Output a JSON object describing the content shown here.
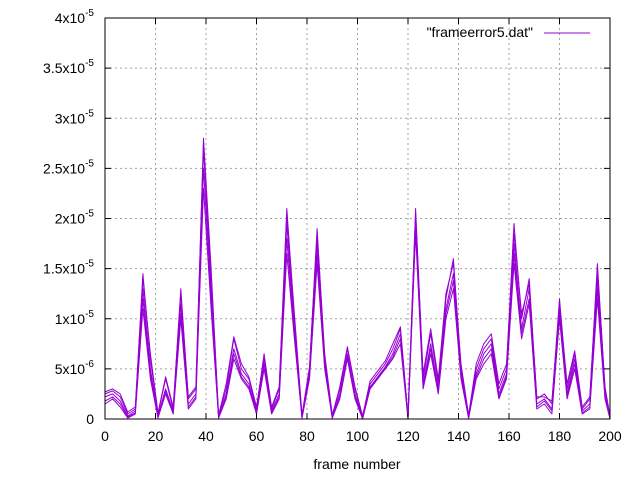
{
  "chart_data": {
    "type": "line",
    "title": "",
    "xlabel": "frame number",
    "ylabel": "",
    "xlim": [
      0,
      200
    ],
    "ylim": [
      0,
      4e-05
    ],
    "grid": true,
    "legend_position": "top-right",
    "colors": {
      "series": "#9400d3",
      "frame": "#000000",
      "grid": "#a0a0a0"
    },
    "x_ticks": [
      {
        "value": 0,
        "label": "0"
      },
      {
        "value": 20,
        "label": "20"
      },
      {
        "value": 40,
        "label": "40"
      },
      {
        "value": 60,
        "label": "60"
      },
      {
        "value": 80,
        "label": "80"
      },
      {
        "value": 100,
        "label": "100"
      },
      {
        "value": 120,
        "label": "120"
      },
      {
        "value": 140,
        "label": "140"
      },
      {
        "value": 160,
        "label": "160"
      },
      {
        "value": 180,
        "label": "180"
      },
      {
        "value": 200,
        "label": "200"
      }
    ],
    "y_ticks": [
      {
        "value": 0,
        "mantissa": "0",
        "exp": ""
      },
      {
        "value": 5e-06,
        "mantissa": "5x10",
        "exp": "-6"
      },
      {
        "value": 1e-05,
        "mantissa": "1x10",
        "exp": "-5"
      },
      {
        "value": 1.5e-05,
        "mantissa": "1.5x10",
        "exp": "-5"
      },
      {
        "value": 2e-05,
        "mantissa": "2x10",
        "exp": "-5"
      },
      {
        "value": 2.5e-05,
        "mantissa": "2.5x10",
        "exp": "-5"
      },
      {
        "value": 3e-05,
        "mantissa": "3x10",
        "exp": "-5"
      },
      {
        "value": 3.5e-05,
        "mantissa": "3.5x10",
        "exp": "-5"
      },
      {
        "value": 4e-05,
        "mantissa": "4x10",
        "exp": "-5"
      }
    ],
    "legend": [
      {
        "label": "\"frameerror5.dat\""
      }
    ],
    "series": [
      {
        "x": [
          0,
          3,
          6,
          9,
          12,
          15,
          18,
          21,
          24,
          27,
          30,
          33,
          36,
          39,
          42,
          45,
          48,
          51,
          54,
          57,
          60,
          63,
          66,
          69,
          72,
          75,
          78,
          81,
          84,
          87,
          90,
          93,
          96,
          99,
          102,
          105,
          108,
          111,
          114,
          117,
          120,
          123,
          126,
          129,
          132,
          135,
          138,
          141,
          144,
          147,
          150,
          153,
          156,
          159,
          162,
          165,
          168,
          171,
          174,
          177,
          180,
          183,
          186,
          189,
          192,
          195,
          198,
          200
        ],
        "values": [
          2.5e-06,
          2.8e-06,
          2.2e-06,
          5e-07,
          1e-06,
          1.45e-05,
          6e-06,
          5e-07,
          4e-06,
          1e-06,
          1.3e-05,
          2e-06,
          3e-06,
          2.8e-05,
          1.5e-05,
          3e-07,
          3e-06,
          8e-06,
          5e-06,
          4e-06,
          1e-06,
          6.5e-06,
          1e-06,
          3e-06,
          2.1e-05,
          1e-05,
          3e-07,
          5e-06,
          1.9e-05,
          6e-06,
          3e-07,
          3e-06,
          7e-06,
          3e-06,
          2e-07,
          3.5e-06,
          4.5e-06,
          5.5e-06,
          7e-06,
          9e-06,
          2e-07,
          2.1e-05,
          4e-06,
          8.5e-06,
          3.5e-06,
          1.2e-05,
          1.6e-05,
          5e-06,
          3e-07,
          5e-06,
          7e-06,
          8e-06,
          3e-06,
          5e-06,
          1.95e-05,
          1e-05,
          1.4e-05,
          2e-06,
          2.5e-06,
          1.5e-06,
          1.2e-05,
          3e-06,
          6.5e-06,
          1e-06,
          2e-06,
          1.55e-05,
          3e-06,
          2e-07
        ]
      },
      {
        "x": [
          0,
          3,
          6,
          9,
          12,
          15,
          18,
          21,
          24,
          27,
          30,
          33,
          36,
          39,
          42,
          45,
          48,
          51,
          54,
          57,
          60,
          63,
          66,
          69,
          72,
          75,
          78,
          81,
          84,
          87,
          90,
          93,
          96,
          99,
          102,
          105,
          108,
          111,
          114,
          117,
          120,
          123,
          126,
          129,
          132,
          135,
          138,
          141,
          144,
          147,
          150,
          153,
          156,
          159,
          162,
          165,
          168,
          171,
          174,
          177,
          180,
          183,
          186,
          189,
          192,
          195,
          198,
          200
        ],
        "values": [
          2.2e-06,
          2.5e-06,
          1.8e-06,
          3e-07,
          8e-07,
          1.3e-05,
          5e-06,
          3e-07,
          3e-06,
          8e-07,
          1.15e-05,
          1.5e-06,
          2.5e-06,
          2.7e-05,
          1.3e-05,
          2e-07,
          2.5e-06,
          7e-06,
          4.5e-06,
          3.5e-06,
          8e-07,
          6e-06,
          8e-07,
          2.5e-06,
          1.95e-05,
          9e-06,
          2e-07,
          4.5e-06,
          1.75e-05,
          5.5e-06,
          2e-07,
          2.5e-06,
          6.5e-06,
          2.5e-06,
          1e-07,
          3.2e-06,
          4.2e-06,
          5.2e-06,
          6.5e-06,
          8.5e-06,
          1e-07,
          2e-05,
          3.5e-06,
          7.5e-06,
          3e-06,
          1.1e-05,
          1.45e-05,
          4.5e-06,
          2e-07,
          4.5e-06,
          6.5e-06,
          7.5e-06,
          2.5e-06,
          4.5e-06,
          1.75e-05,
          9e-06,
          1.3e-05,
          1.5e-06,
          2e-06,
          1e-06,
          1.1e-05,
          2.5e-06,
          6e-06,
          8e-07,
          1.5e-06,
          1.4e-05,
          2.5e-06,
          1e-07
        ]
      },
      {
        "x": [
          0,
          3,
          6,
          9,
          12,
          15,
          18,
          21,
          24,
          27,
          30,
          33,
          36,
          39,
          42,
          45,
          48,
          51,
          54,
          57,
          60,
          63,
          66,
          69,
          72,
          75,
          78,
          81,
          84,
          87,
          90,
          93,
          96,
          99,
          102,
          105,
          108,
          111,
          114,
          117,
          120,
          123,
          126,
          129,
          132,
          135,
          138,
          141,
          144,
          147,
          150,
          153,
          156,
          159,
          162,
          165,
          168,
          171,
          174,
          177,
          180,
          183,
          186,
          189,
          192,
          195,
          198,
          200
        ],
        "values": [
          1.5e-06,
          2e-06,
          1.2e-06,
          1e-07,
          5e-07,
          1.1e-05,
          4e-06,
          1e-07,
          2.5e-06,
          5e-07,
          1e-05,
          1e-06,
          2e-06,
          2.3e-05,
          1.1e-05,
          1e-07,
          2e-06,
          6e-06,
          4e-06,
          3e-06,
          5e-07,
          5e-06,
          5e-07,
          2e-06,
          1.65e-05,
          8e-06,
          1e-07,
          4e-06,
          1.55e-05,
          5e-06,
          1e-07,
          2e-06,
          6e-06,
          2e-06,
          0,
          3e-06,
          4e-06,
          5e-06,
          6e-06,
          7.5e-06,
          0,
          1.85e-05,
          3e-06,
          6.5e-06,
          2.5e-06,
          1e-05,
          1.3e-05,
          4e-06,
          1e-07,
          4e-06,
          5.5e-06,
          6.5e-06,
          2e-06,
          4e-06,
          1.55e-05,
          8e-06,
          1.15e-05,
          1e-06,
          1.5e-06,
          5e-07,
          1e-05,
          2e-06,
          5e-06,
          5e-07,
          1e-06,
          1.2e-05,
          2e-06,
          0
        ]
      },
      {
        "x": [
          0,
          3,
          6,
          9,
          12,
          15,
          18,
          21,
          24,
          27,
          30,
          33,
          36,
          39,
          42,
          45,
          48,
          51,
          54,
          57,
          60,
          63,
          66,
          69,
          72,
          75,
          78,
          81,
          84,
          87,
          90,
          93,
          96,
          99,
          102,
          105,
          108,
          111,
          114,
          117,
          120,
          123,
          126,
          129,
          132,
          135,
          138,
          141,
          144,
          147,
          150,
          153,
          156,
          159,
          162,
          165,
          168,
          171,
          174,
          177,
          180,
          183,
          186,
          189,
          192,
          195,
          198,
          200
        ],
        "values": [
          2.7e-06,
          3e-06,
          2.5e-06,
          7e-07,
          1.2e-06,
          1.4e-05,
          6.5e-06,
          6e-07,
          4.2e-06,
          1.2e-06,
          1.25e-05,
          2.2e-06,
          3.2e-06,
          2.75e-05,
          1.45e-05,
          4e-07,
          3.5e-06,
          8.2e-06,
          5.5e-06,
          4.2e-06,
          1.2e-06,
          6.2e-06,
          1.2e-06,
          3.2e-06,
          2.05e-05,
          1.05e-05,
          4e-07,
          5.2e-06,
          1.85e-05,
          6.5e-06,
          4e-07,
          3.2e-06,
          7.2e-06,
          3.2e-06,
          3e-07,
          3.8e-06,
          4.8e-06,
          5.8e-06,
          7.5e-06,
          9.2e-06,
          3e-07,
          2.05e-05,
          4.5e-06,
          9e-06,
          4e-06,
          1.25e-05,
          1.55e-05,
          5.5e-06,
          4e-07,
          5.5e-06,
          7.5e-06,
          8.5e-06,
          3.5e-06,
          5.5e-06,
          1.85e-05,
          1.05e-05,
          1.35e-05,
          2.2e-06,
          2.2e-06,
          1.8e-06,
          1.15e-05,
          3.5e-06,
          6.8e-06,
          1.2e-06,
          2.2e-06,
          1.5e-05,
          3.2e-06,
          3e-07
        ]
      },
      {
        "x": [
          0,
          3,
          6,
          9,
          12,
          15,
          18,
          21,
          24,
          27,
          30,
          33,
          36,
          39,
          42,
          45,
          48,
          51,
          54,
          57,
          60,
          63,
          66,
          69,
          72,
          75,
          78,
          81,
          84,
          87,
          90,
          93,
          96,
          99,
          102,
          105,
          108,
          111,
          114,
          117,
          120,
          123,
          126,
          129,
          132,
          135,
          138,
          141,
          144,
          147,
          150,
          153,
          156,
          159,
          162,
          165,
          168,
          171,
          174,
          177,
          180,
          183,
          186,
          189,
          192,
          195,
          198,
          200
        ],
        "values": [
          1.8e-06,
          2.2e-06,
          1.5e-06,
          2e-07,
          6e-07,
          1.2e-05,
          4.5e-06,
          2e-07,
          2.8e-06,
          6e-07,
          1.05e-05,
          1.2e-06,
          2.2e-06,
          2.5e-05,
          1.2e-05,
          1e-07,
          2.2e-06,
          6.5e-06,
          4.2e-06,
          3.2e-06,
          6e-07,
          5.5e-06,
          6e-07,
          2.2e-06,
          1.8e-05,
          8.5e-06,
          1e-07,
          4.2e-06,
          1.65e-05,
          5.2e-06,
          1e-07,
          2.2e-06,
          6.2e-06,
          2.2e-06,
          1e-07,
          3.1e-06,
          4.1e-06,
          5.1e-06,
          6.2e-06,
          8e-06,
          1e-07,
          1.95e-05,
          3.2e-06,
          7e-06,
          2.8e-06,
          1.05e-05,
          1.38e-05,
          4.2e-06,
          1e-07,
          4.2e-06,
          6e-06,
          7e-06,
          2.2e-06,
          4.2e-06,
          1.65e-05,
          8.5e-06,
          1.2e-05,
          1.2e-06,
          1.8e-06,
          8e-07,
          1.05e-05,
          2.2e-06,
          5.5e-06,
          6e-07,
          1.2e-06,
          1.3e-05,
          2.2e-06,
          1e-07
        ]
      }
    ]
  }
}
